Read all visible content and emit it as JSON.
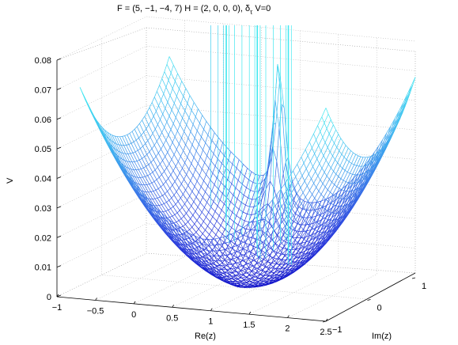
{
  "chart_data": {
    "type": "surface-3d-mesh",
    "title_main": "F = (5, −1, −4, 7) H = (2, 0, 0, 0), δ",
    "title_subscript": "τ",
    "title_tail": " V=0",
    "xlabel": "Re(z)",
    "ylabel": "Im(z)",
    "zlabel": "V",
    "x_ticks": [
      "−1",
      "−0.5",
      "0",
      "0.5",
      "1",
      "1.5",
      "2",
      "2.5"
    ],
    "y_ticks": [
      "−1",
      "0",
      "1"
    ],
    "z_ticks": [
      "0",
      "0.01",
      "0.02",
      "0.03",
      "0.04",
      "0.05",
      "0.06",
      "0.07",
      "0.08"
    ],
    "xlim": [
      -1,
      2.5
    ],
    "ylim": [
      -1,
      1
    ],
    "zlim": [
      0,
      0.08
    ],
    "grid": true,
    "colormap": [
      "#1010c8",
      "#2a3cdc",
      "#3a78e8",
      "#40b8f0",
      "#40e8f0"
    ]
  }
}
